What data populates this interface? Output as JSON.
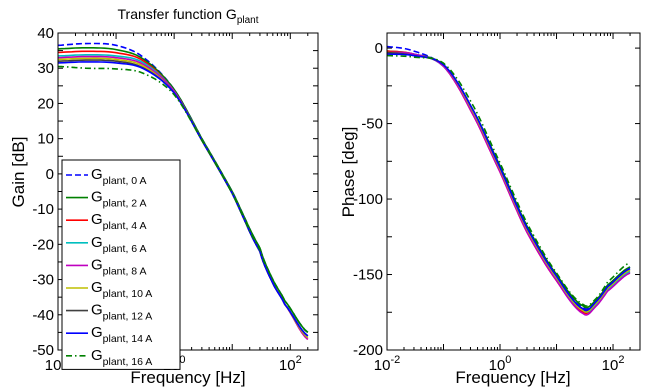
{
  "chart_data": [
    {
      "type": "line",
      "title": "Transfer function G",
      "title_sub": "plant",
      "xlabel": "Frequency [Hz]",
      "ylabel": "Gain [dB]",
      "xscale": "log",
      "xlim": [
        0.01,
        300
      ],
      "ylim": [
        -50,
        40
      ],
      "xticks": [
        {
          "value": 0.01,
          "base": "10",
          "exp": "-2"
        },
        {
          "value": 1,
          "base": "10",
          "exp": "0"
        },
        {
          "value": 100,
          "base": "10",
          "exp": "2"
        }
      ],
      "yticks": [
        -50,
        -45,
        -40,
        -35,
        -30,
        -25,
        -20,
        -15,
        -10,
        -5,
        0,
        5,
        10,
        15,
        20,
        25,
        30,
        35,
        40
      ],
      "yticklabels": [
        "-50",
        "",
        "-40",
        "",
        "-30",
        "",
        "-20",
        "",
        "-10",
        "",
        "0",
        "",
        "10",
        "",
        "20",
        "",
        "30",
        "",
        "40"
      ],
      "grid": false,
      "legend_position": "left",
      "series": [
        {
          "name_base": "G",
          "name_sub": "plant, 0 A",
          "color": "#0000ff",
          "dash": "dashed",
          "x": [
            0.01,
            0.03,
            0.1,
            0.3,
            1,
            3,
            10,
            30,
            50,
            80,
            200
          ],
          "y": [
            36.5,
            37,
            36.5,
            33,
            24,
            10,
            -5,
            -21,
            -30,
            -36,
            -45
          ]
        },
        {
          "name_base": "G",
          "name_sub": "plant, 2 A",
          "color": "#008000",
          "dash": "solid",
          "x": [
            0.01,
            0.03,
            0.1,
            0.3,
            1,
            3,
            10,
            30,
            50,
            80,
            200
          ],
          "y": [
            35.5,
            35.8,
            35.3,
            32.5,
            24,
            10,
            -5,
            -21,
            -30,
            -36,
            -45
          ]
        },
        {
          "name_base": "G",
          "name_sub": "plant, 4 A",
          "color": "#ff0000",
          "dash": "solid",
          "x": [
            0.01,
            0.03,
            0.1,
            0.3,
            1,
            3,
            10,
            30,
            50,
            80,
            200
          ],
          "y": [
            34.5,
            34.8,
            34.4,
            32,
            23.5,
            9.5,
            -5.5,
            -22,
            -31,
            -37,
            -47
          ]
        },
        {
          "name_base": "G",
          "name_sub": "plant, 6 A",
          "color": "#00bfbf",
          "dash": "solid",
          "x": [
            0.01,
            0.03,
            0.1,
            0.3,
            1,
            3,
            10,
            30,
            50,
            80,
            200
          ],
          "y": [
            33.5,
            33.8,
            33.5,
            31.5,
            23.5,
            9.5,
            -5.5,
            -22,
            -31,
            -37,
            -46.5
          ]
        },
        {
          "name_base": "G",
          "name_sub": "plant, 8 A",
          "color": "#bf00bf",
          "dash": "solid",
          "x": [
            0.01,
            0.03,
            0.1,
            0.3,
            1,
            3,
            10,
            30,
            50,
            80,
            200
          ],
          "y": [
            33,
            33.3,
            33,
            31,
            23.5,
            9.5,
            -5.5,
            -22,
            -31,
            -37,
            -47
          ]
        },
        {
          "name_base": "G",
          "name_sub": "plant, 10 A",
          "color": "#bfbf00",
          "dash": "solid",
          "x": [
            0.01,
            0.03,
            0.1,
            0.3,
            1,
            3,
            10,
            30,
            50,
            80,
            200
          ],
          "y": [
            32.5,
            32.8,
            32.5,
            30.5,
            23,
            9.5,
            -5.5,
            -22,
            -31,
            -37,
            -46.5
          ]
        },
        {
          "name_base": "G",
          "name_sub": "plant, 12 A",
          "color": "#404040",
          "dash": "solid",
          "x": [
            0.01,
            0.03,
            0.1,
            0.3,
            1,
            3,
            10,
            30,
            50,
            80,
            200
          ],
          "y": [
            32,
            32.3,
            32,
            30,
            23,
            9.5,
            -5.5,
            -22,
            -31,
            -37,
            -46
          ]
        },
        {
          "name_base": "G",
          "name_sub": "plant, 14 A",
          "color": "#0000ff",
          "dash": "solid",
          "x": [
            0.01,
            0.03,
            0.1,
            0.3,
            1,
            3,
            10,
            30,
            50,
            80,
            200
          ],
          "y": [
            31.5,
            31.8,
            31.5,
            29.8,
            23,
            9.5,
            -5.5,
            -22,
            -31,
            -37,
            -46
          ]
        },
        {
          "name_base": "G",
          "name_sub": "plant, 16 A",
          "color": "#008000",
          "dash": "dashdot",
          "x": [
            0.01,
            0.03,
            0.1,
            0.3,
            1,
            3,
            10,
            30,
            50,
            80,
            200
          ],
          "y": [
            30.5,
            30,
            29.8,
            28.5,
            22.5,
            9.5,
            -5.5,
            -21.5,
            -30,
            -36,
            -45
          ]
        }
      ]
    },
    {
      "type": "line",
      "title": "",
      "xlabel": "Frequency [Hz]",
      "ylabel": "Phase [deg]",
      "xscale": "log",
      "xlim": [
        0.01,
        300
      ],
      "ylim": [
        -200,
        10
      ],
      "xticks": [
        {
          "value": 0.01,
          "base": "10",
          "exp": "-2"
        },
        {
          "value": 1,
          "base": "10",
          "exp": "0"
        },
        {
          "value": 100,
          "base": "10",
          "exp": "2"
        }
      ],
      "yticks": [
        -200,
        -175,
        -150,
        -125,
        -100,
        -75,
        -50,
        -25,
        0
      ],
      "yticklabels": [
        "-200",
        "",
        "-150",
        "",
        "-100",
        "",
        "-50",
        "",
        "0"
      ],
      "grid": false,
      "legend_position": "none",
      "series": [
        {
          "color": "#0000ff",
          "dash": "dashed",
          "x": [
            0.01,
            0.03,
            0.1,
            0.3,
            1,
            3,
            10,
            30,
            50,
            80,
            200
          ],
          "y": [
            1,
            -2,
            -12,
            -40,
            -80,
            -120,
            -152,
            -172,
            -168,
            -158,
            -145
          ]
        },
        {
          "color": "#008000",
          "dash": "solid",
          "x": [
            0.01,
            0.03,
            0.1,
            0.3,
            1,
            3,
            10,
            30,
            50,
            80,
            200
          ],
          "y": [
            -2,
            -4,
            -11,
            -38,
            -78,
            -118,
            -150,
            -171,
            -167,
            -157,
            -145
          ]
        },
        {
          "color": "#ff0000",
          "dash": "solid",
          "x": [
            0.01,
            0.03,
            0.1,
            0.3,
            1,
            3,
            10,
            30,
            50,
            80,
            200
          ],
          "y": [
            -2,
            -4,
            -12,
            -41,
            -82,
            -122,
            -154,
            -175,
            -170,
            -160,
            -148
          ]
        },
        {
          "color": "#00bfbf",
          "dash": "solid",
          "x": [
            0.01,
            0.03,
            0.1,
            0.3,
            1,
            3,
            10,
            30,
            50,
            80,
            200
          ],
          "y": [
            -3,
            -4,
            -12,
            -40,
            -81,
            -121,
            -153,
            -174,
            -170,
            -160,
            -148
          ]
        },
        {
          "color": "#bf00bf",
          "dash": "solid",
          "x": [
            0.01,
            0.03,
            0.1,
            0.3,
            1,
            3,
            10,
            30,
            50,
            80,
            200
          ],
          "y": [
            -3,
            -4,
            -12,
            -41,
            -82,
            -122,
            -154,
            -176,
            -171,
            -161,
            -149
          ]
        },
        {
          "color": "#bfbf00",
          "dash": "solid",
          "x": [
            0.01,
            0.03,
            0.1,
            0.3,
            1,
            3,
            10,
            30,
            50,
            80,
            200
          ],
          "y": [
            -3,
            -5,
            -11,
            -39,
            -80,
            -120,
            -152,
            -174,
            -169,
            -159,
            -147
          ]
        },
        {
          "color": "#404040",
          "dash": "solid",
          "x": [
            0.01,
            0.03,
            0.1,
            0.3,
            1,
            3,
            10,
            30,
            50,
            80,
            200
          ],
          "y": [
            -3,
            -5,
            -11,
            -38,
            -79,
            -119,
            -151,
            -173,
            -168,
            -158,
            -146
          ]
        },
        {
          "color": "#0000ff",
          "dash": "solid",
          "x": [
            0.01,
            0.03,
            0.1,
            0.3,
            1,
            3,
            10,
            30,
            50,
            80,
            200
          ],
          "y": [
            -4,
            -5,
            -11,
            -38,
            -79,
            -119,
            -151,
            -173,
            -168,
            -158,
            -146
          ]
        },
        {
          "color": "#008000",
          "dash": "dashdot",
          "x": [
            0.01,
            0.03,
            0.1,
            0.3,
            1,
            3,
            10,
            30,
            50,
            80,
            200
          ],
          "y": [
            -5,
            -6,
            -10,
            -35,
            -76,
            -116,
            -149,
            -170,
            -166,
            -155,
            -142
          ]
        }
      ]
    }
  ]
}
